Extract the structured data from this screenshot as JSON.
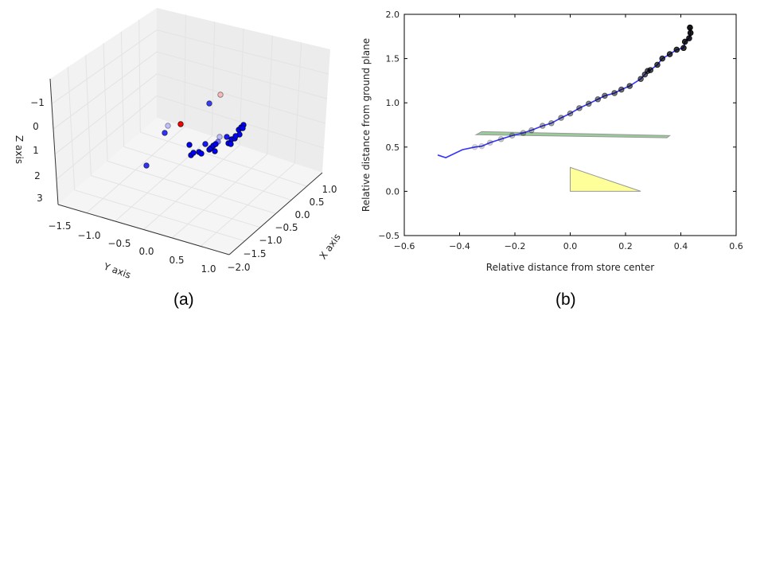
{
  "captions": {
    "a": "(a)",
    "b": "(b)"
  },
  "chart_data": [
    {
      "type": "scatter",
      "projection": "3d",
      "xlabel": "X axis",
      "ylabel": "Y axis",
      "zlabel": "Z axis",
      "x_ticks": [
        "1.0",
        "0.5",
        "0.0",
        "−0.5",
        "−1.0",
        "−1.5",
        "−2.0"
      ],
      "y_ticks": [
        "−1.5",
        "−1.0",
        "−0.5",
        "0.0",
        "0.5",
        "1.0"
      ],
      "z_ticks": [
        "−1",
        "0",
        "1",
        "2",
        "3"
      ],
      "xlim": [
        -2.0,
        1.0
      ],
      "ylim": [
        -1.5,
        1.0
      ],
      "zlim": [
        3,
        -1
      ],
      "grid": true,
      "colors": {
        "points": "#0000ff",
        "highlight": "#ff0000"
      }
    },
    {
      "type": "line",
      "xlabel": "Relative distance from store center",
      "ylabel": "Relative distance from ground plane",
      "xlim": [
        -0.6,
        0.6
      ],
      "ylim": [
        -0.5,
        2.0
      ],
      "x_ticks": [
        "−0.6",
        "−0.4",
        "−0.2",
        "0.0",
        "0.2",
        "0.4",
        "0.6"
      ],
      "y_ticks": [
        "−0.5",
        "0.0",
        "0.5",
        "1.0",
        "1.5",
        "2.0"
      ],
      "grid": false,
      "series": [
        {
          "color": "#3333ff",
          "x": [
            -0.479,
            -0.45,
            -0.39,
            -0.345,
            -0.32,
            -0.29,
            -0.25,
            -0.21,
            -0.17,
            -0.14,
            -0.1,
            -0.068,
            -0.033,
            0.0,
            0.033,
            0.067,
            0.1,
            0.125,
            0.16,
            0.185,
            0.215,
            0.255,
            0.27,
            0.28,
            0.29,
            0.315,
            0.333,
            0.36,
            0.385,
            0.41,
            0.415,
            0.43,
            0.435,
            0.433
          ],
          "y": [
            0.41,
            0.38,
            0.47,
            0.5,
            0.51,
            0.55,
            0.59,
            0.63,
            0.66,
            0.69,
            0.74,
            0.77,
            0.83,
            0.88,
            0.94,
            0.99,
            1.04,
            1.08,
            1.11,
            1.15,
            1.19,
            1.27,
            1.32,
            1.36,
            1.37,
            1.43,
            1.5,
            1.55,
            1.6,
            1.62,
            1.69,
            1.73,
            1.79,
            1.85
          ]
        }
      ],
      "shapes": [
        {
          "kind": "plane",
          "color": "#7fbf7f",
          "points": [
            [
              -0.34,
              0.64
            ],
            [
              -0.32,
              0.675
            ],
            [
              0.36,
              0.63
            ],
            [
              0.35,
              0.605
            ]
          ]
        },
        {
          "kind": "triangle",
          "color": "#ffff80",
          "points": [
            [
              0,
              0
            ],
            [
              0,
              0.27
            ],
            [
              0.255,
              0
            ]
          ]
        }
      ]
    }
  ]
}
